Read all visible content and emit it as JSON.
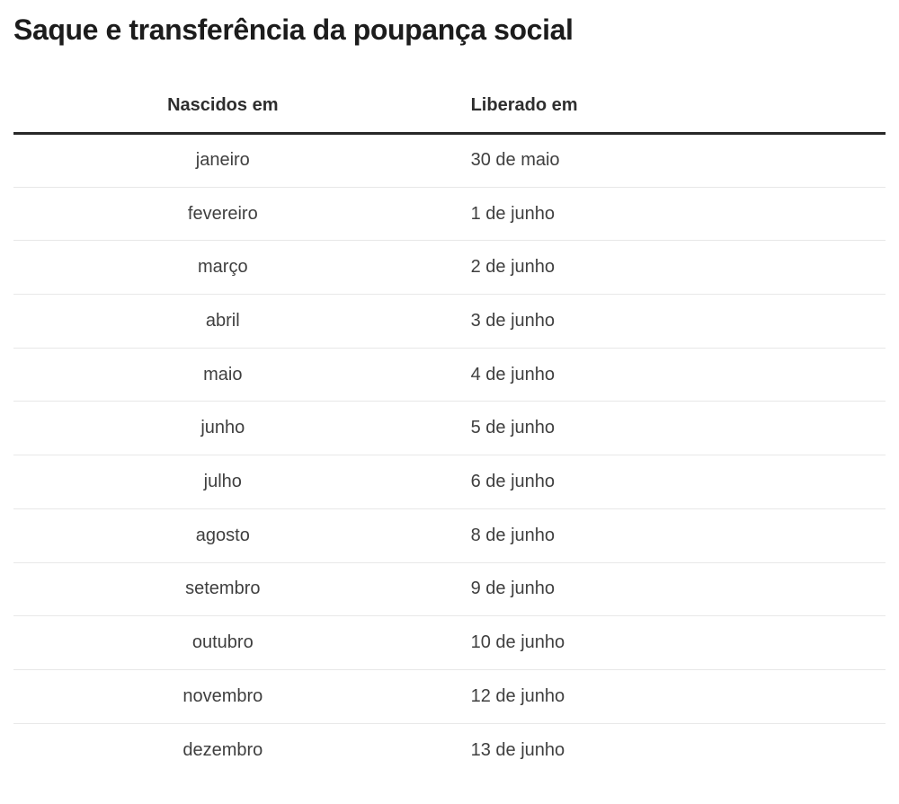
{
  "chart_data": {
    "type": "table",
    "title": "Saque e transferência da poupança social",
    "columns": [
      "Nascidos em",
      "Liberado em"
    ],
    "rows": [
      [
        "janeiro",
        "30 de maio"
      ],
      [
        "fevereiro",
        "1 de junho"
      ],
      [
        "março",
        "2 de junho"
      ],
      [
        "abril",
        "3 de junho"
      ],
      [
        "maio",
        "4 de junho"
      ],
      [
        "junho",
        "5 de junho"
      ],
      [
        "julho",
        "6 de junho"
      ],
      [
        "agosto",
        "8 de junho"
      ],
      [
        "setembro",
        "9 de junho"
      ],
      [
        "outubro",
        "10 de junho"
      ],
      [
        "novembro",
        "12 de junho"
      ],
      [
        "dezembro",
        "13 de junho"
      ]
    ],
    "layout": {
      "header_rule": "thick-bottom-border",
      "row_dividers": true,
      "column_alignment": [
        "center",
        "left"
      ]
    }
  },
  "colors": {
    "title_text": "#1c1c1c",
    "header_text": "#2e2e2e",
    "body_text": "#3f3f3f",
    "header_rule": "#282828",
    "row_divider": "#e8e8e8",
    "background": "#ffffff"
  }
}
